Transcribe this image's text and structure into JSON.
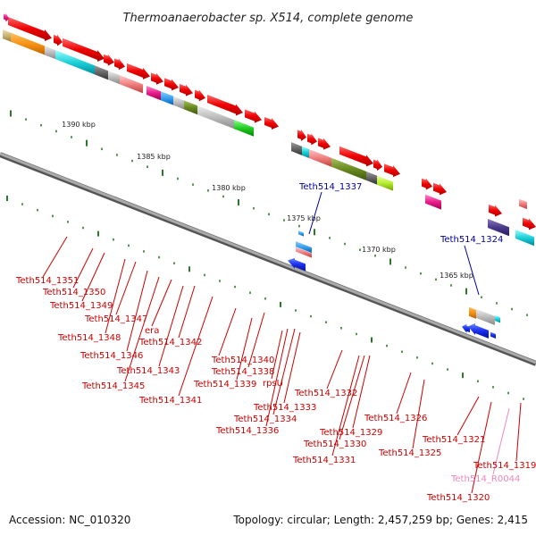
{
  "title": "Thermoanaerobacter sp. X514, complete genome",
  "footer": {
    "accession": "Accession: NC_010320",
    "summary": "Topology: circular; Length: 2,457,259 bp; Genes: 2,415"
  },
  "colors": {
    "gene_label": "#cc0000",
    "highlight_label": "#000099",
    "rna_label": "#ee88bb",
    "backbone": "#888888",
    "tick": "#2a7a2a",
    "forward_gene": "#ee1111"
  },
  "scale_marks": [
    "1390 kbp",
    "1385 kbp",
    "1380 kbp",
    "1375 kbp",
    "1370 kbp",
    "1365 kbp"
  ],
  "gene_labels": [
    {
      "id": "Teth514_1351",
      "kind": "gene"
    },
    {
      "id": "Teth514_1350",
      "kind": "gene"
    },
    {
      "id": "Teth514_1349",
      "kind": "gene"
    },
    {
      "id": "Teth514_1347",
      "kind": "gene"
    },
    {
      "id": "Teth514_1348",
      "kind": "gene"
    },
    {
      "id": "era",
      "kind": "gene"
    },
    {
      "id": "Teth514_1342",
      "kind": "gene"
    },
    {
      "id": "Teth514_1346",
      "kind": "gene"
    },
    {
      "id": "Teth514_1343",
      "kind": "gene"
    },
    {
      "id": "Teth514_1345",
      "kind": "gene"
    },
    {
      "id": "Teth514_1341",
      "kind": "gene"
    },
    {
      "id": "Teth514_1340",
      "kind": "gene"
    },
    {
      "id": "Teth514_1338",
      "kind": "gene"
    },
    {
      "id": "Teth514_1339",
      "kind": "gene"
    },
    {
      "id": "rpsU",
      "kind": "gene"
    },
    {
      "id": "Teth514_1337",
      "kind": "highlight"
    },
    {
      "id": "Teth514_1332",
      "kind": "gene"
    },
    {
      "id": "Teth514_1333",
      "kind": "gene"
    },
    {
      "id": "Teth514_1334",
      "kind": "gene"
    },
    {
      "id": "Teth514_1336",
      "kind": "gene"
    },
    {
      "id": "Teth514_1329",
      "kind": "gene"
    },
    {
      "id": "Teth514_1330",
      "kind": "gene"
    },
    {
      "id": "Teth514_1331",
      "kind": "gene"
    },
    {
      "id": "Teth514_1326",
      "kind": "gene"
    },
    {
      "id": "Teth514_1325",
      "kind": "gene"
    },
    {
      "id": "Teth514_1324",
      "kind": "highlight"
    },
    {
      "id": "Teth514_1321",
      "kind": "gene"
    },
    {
      "id": "Teth514_1319",
      "kind": "gene"
    },
    {
      "id": "Teth514_R0044",
      "kind": "rna"
    },
    {
      "id": "Teth514_1320",
      "kind": "gene"
    }
  ]
}
